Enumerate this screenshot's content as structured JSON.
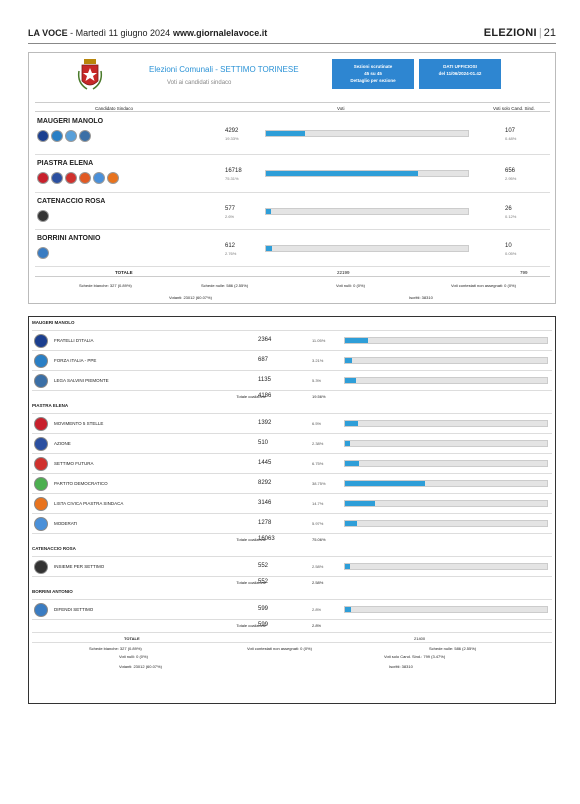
{
  "header": {
    "paper": "LA VOCE",
    "date": " - Martedì 11 giugno 2024",
    "site": "www.giornalelavoce.it",
    "section": "ELEZIONI",
    "page": "21"
  },
  "top": {
    "title": "Elezioni Comunali - SETTIMO TORINESE",
    "subtitle": "Voti ai candidati sindaco",
    "box1": [
      "Sezioni scrutinate",
      "45 su 45",
      "Dettaglio per sezione"
    ],
    "box2": [
      "DATI UFFICIOSI",
      "del 11/06/2024-01.42"
    ],
    "cols": {
      "cand": "Candidato Sindaco",
      "votes": "Voti",
      "only": "Voti solo Cand. Sind."
    },
    "candidates": [
      {
        "name": "MAUGERI MANOLO",
        "votes": "4292",
        "pct": "19.33%",
        "frac": 0.1933,
        "only": "107",
        "only_pct": "0.48%",
        "logos": [
          "#1b3f8f",
          "#2a7fc5",
          "#5aa0d9",
          "#3b6fa6"
        ]
      },
      {
        "name": "PIASTRA ELENA",
        "votes": "16718",
        "pct": "75.31%",
        "frac": 0.7531,
        "only": "656",
        "only_pct": "2.95%",
        "logos": [
          "#c8202c",
          "#2b4fa0",
          "#d0312d",
          "#e15a24",
          "#4a90d9",
          "#e8731e"
        ]
      },
      {
        "name": "CATENACCIO ROSA",
        "votes": "577",
        "pct": "2.6%",
        "frac": 0.026,
        "only": "26",
        "only_pct": "0.12%",
        "logos": [
          "#333333"
        ]
      },
      {
        "name": "BORRINI ANTONIO",
        "votes": "612",
        "pct": "2.76%",
        "frac": 0.0276,
        "only": "10",
        "only_pct": "0.05%",
        "logos": [
          "#3a7cc2"
        ]
      }
    ],
    "total_label": "TOTALE",
    "total": "22199",
    "total_only": "799",
    "stats": [
      "Schede bianche: 327 (0.89%)",
      "Schede nulle: 586 (2.55%)",
      "Voti nulli: 0 (0%)",
      "Voti contestati non assegnati: 0 (0%)",
      "Votanti: 23012 (60.07%)",
      "Iscritti: 38310"
    ]
  },
  "lists": {
    "groups": [
      {
        "name": "MAUGERI MANOLO",
        "parties": [
          {
            "name": "FRATELLI D'ITALIA",
            "votes": "2364",
            "pct": "11.05%",
            "frac": 0.1105,
            "color": "#1b3f8f"
          },
          {
            "name": "FORZA ITALIA - PPE",
            "votes": "687",
            "pct": "3.21%",
            "frac": 0.0321,
            "color": "#2a7fc5"
          },
          {
            "name": "LEGA SALVINI PIEMONTE",
            "votes": "1135",
            "pct": "5.3%",
            "frac": 0.053,
            "color": "#3b6fa6"
          }
        ],
        "total_label": "Totale coalizione",
        "total": "4186",
        "total_pct": "19.56%"
      },
      {
        "name": "PIASTRA ELENA",
        "parties": [
          {
            "name": "MOVIMENTO 5 STELLE",
            "votes": "1392",
            "pct": "6.5%",
            "frac": 0.065,
            "color": "#c8202c"
          },
          {
            "name": "AZIONE",
            "votes": "510",
            "pct": "2.38%",
            "frac": 0.0238,
            "color": "#2b4fa0"
          },
          {
            "name": "SETTIMO FUTURA",
            "votes": "1445",
            "pct": "6.75%",
            "frac": 0.0675,
            "color": "#d0312d"
          },
          {
            "name": "PARTITO DEMOCRATICO",
            "votes": "8292",
            "pct": "38.75%",
            "frac": 0.3875,
            "color": "#4caf50"
          },
          {
            "name": "LISTA CIVICA PIASTRA SINDACA",
            "votes": "3146",
            "pct": "14.7%",
            "frac": 0.147,
            "color": "#e8731e"
          },
          {
            "name": "MODERATI",
            "votes": "1278",
            "pct": "5.97%",
            "frac": 0.0597,
            "color": "#4a90d9"
          }
        ],
        "total_label": "Totale coalizione",
        "total": "16063",
        "total_pct": "75.06%"
      },
      {
        "name": "CATENACCIO ROSA",
        "parties": [
          {
            "name": "INSIEME PER SETTIMO",
            "votes": "552",
            "pct": "2.58%",
            "frac": 0.0258,
            "color": "#333333"
          }
        ],
        "total_label": "Totale coalizione",
        "total": "552",
        "total_pct": "2.58%"
      },
      {
        "name": "BORRINI ANTONIO",
        "parties": [
          {
            "name": "DIFENDI SETTIMO",
            "votes": "599",
            "pct": "2.8%",
            "frac": 0.028,
            "color": "#3a7cc2"
          }
        ],
        "total_label": "Totale coalizione",
        "total": "599",
        "total_pct": "2.8%"
      }
    ],
    "total_label": "TOTALE",
    "total": "21400",
    "footer": [
      "Schede bianche: 327 (0.89%)",
      "Voti contestati non assegnati: 0 (0%)",
      "Schede nulle: 586 (2.55%)",
      "Voti nulli: 0 (0%)",
      "Voti solo Cand. Sind.: 799 (3.47%)",
      "Votanti: 23012 (60.07%)",
      "Iscritti: 38310"
    ]
  }
}
